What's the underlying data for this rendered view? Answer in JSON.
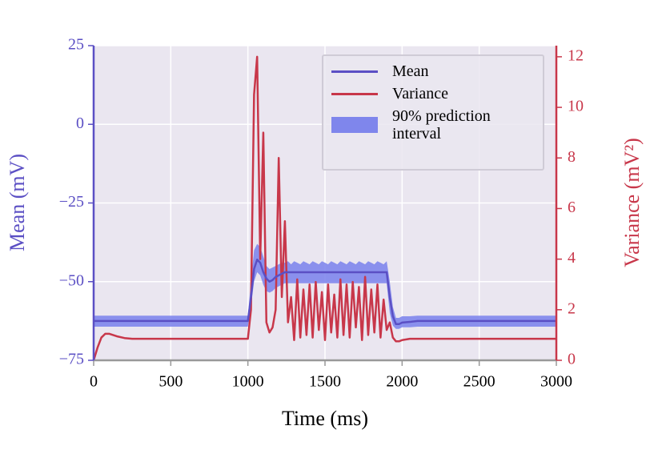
{
  "chart_data": {
    "type": "line",
    "xlabel": "Time (ms)",
    "ylabel": "Mean (mV)",
    "y2label": "Variance (mV²)",
    "x": [
      0,
      25,
      50,
      75,
      100,
      150,
      200,
      250,
      300,
      350,
      400,
      450,
      500,
      550,
      600,
      650,
      700,
      750,
      800,
      850,
      900,
      950,
      1000,
      1020,
      1040,
      1060,
      1080,
      1100,
      1120,
      1140,
      1160,
      1180,
      1200,
      1220,
      1240,
      1260,
      1280,
      1300,
      1320,
      1340,
      1360,
      1380,
      1400,
      1420,
      1440,
      1460,
      1480,
      1500,
      1520,
      1540,
      1560,
      1580,
      1600,
      1620,
      1640,
      1660,
      1680,
      1700,
      1720,
      1740,
      1760,
      1780,
      1800,
      1820,
      1840,
      1860,
      1880,
      1900,
      1920,
      1940,
      1960,
      1980,
      2000,
      2050,
      2100,
      2150,
      2200,
      2250,
      2300,
      2350,
      2400,
      2450,
      2500,
      2550,
      2600,
      2650,
      2700,
      2750,
      2800,
      2850,
      2900,
      2950,
      3000
    ],
    "series": [
      {
        "name": "Mean",
        "color": "#5b4fc4",
        "axis": "y",
        "values": [
          -62.5,
          -62.5,
          -62.5,
          -62.5,
          -62.5,
          -62.5,
          -62.5,
          -62.5,
          -62.5,
          -62.5,
          -62.5,
          -62.5,
          -62.5,
          -62.5,
          -62.5,
          -62.5,
          -62.5,
          -62.5,
          -62.5,
          -62.5,
          -62.5,
          -62.5,
          -62.5,
          -55,
          -46,
          -43,
          -44,
          -47,
          -49,
          -50,
          -49.5,
          -48.5,
          -48,
          -47.5,
          -47,
          -47,
          -47,
          -47,
          -47,
          -47,
          -47,
          -47,
          -47,
          -47,
          -47,
          -47,
          -47,
          -47,
          -47,
          -47,
          -47,
          -47,
          -47,
          -47,
          -47,
          -47,
          -47,
          -47,
          -47,
          -47,
          -47,
          -47,
          -47,
          -47,
          -47,
          -47,
          -47,
          -47,
          -55,
          -61,
          -63.5,
          -63.5,
          -63,
          -62.8,
          -62.5,
          -62.5,
          -62.5,
          -62.5,
          -62.5,
          -62.5,
          -62.5,
          -62.5,
          -62.5,
          -62.5,
          -62.5,
          -62.5,
          -62.5,
          -62.5,
          -62.5,
          -62.5,
          -62.5,
          -62.5,
          -62.5
        ]
      },
      {
        "name": "Variance",
        "color": "#c8374a",
        "axis": "y2",
        "values": [
          0,
          0.5,
          0.9,
          1.05,
          1.05,
          0.95,
          0.88,
          0.85,
          0.85,
          0.85,
          0.85,
          0.85,
          0.85,
          0.85,
          0.85,
          0.85,
          0.85,
          0.85,
          0.85,
          0.85,
          0.85,
          0.85,
          0.85,
          2,
          10.5,
          12,
          4,
          9,
          1.5,
          1.1,
          1.3,
          2,
          8,
          2.5,
          5.5,
          1.5,
          2.5,
          0.8,
          3.2,
          0.9,
          2.8,
          1,
          3,
          0.9,
          3.1,
          1.2,
          2.7,
          0.8,
          3,
          1.1,
          2.6,
          0.9,
          3.2,
          1,
          3,
          0.9,
          3.1,
          1.3,
          2.9,
          0.8,
          3.3,
          1,
          2.8,
          1.1,
          3,
          0.9,
          2.4,
          1.2,
          1.5,
          0.9,
          0.75,
          0.75,
          0.8,
          0.85,
          0.85,
          0.85,
          0.85,
          0.85,
          0.85,
          0.85,
          0.85,
          0.85,
          0.85,
          0.85,
          0.85,
          0.85,
          0.85,
          0.85,
          0.85,
          0.85,
          0.85,
          0.85,
          0.85
        ]
      }
    ],
    "interval": {
      "name": "90% prediction interval",
      "color": "#7f86ec",
      "lower": [
        -64.3,
        -64.3,
        -64.3,
        -64.3,
        -64.3,
        -64.3,
        -64.3,
        -64.3,
        -64.3,
        -64.3,
        -64.3,
        -64.3,
        -64.3,
        -64.3,
        -64.3,
        -64.3,
        -64.3,
        -64.3,
        -64.3,
        -64.3,
        -64.3,
        -64.3,
        -64.3,
        -58,
        -50,
        -47,
        -48,
        -51,
        -53,
        -53.5,
        -53,
        -52,
        -51.5,
        -51,
        -50.5,
        -50.5,
        -50.5,
        -50.5,
        -50.5,
        -50.5,
        -50.5,
        -50.5,
        -50.5,
        -50.5,
        -50.5,
        -50.5,
        -50.5,
        -50.5,
        -50.5,
        -50.5,
        -50.5,
        -50.5,
        -50.5,
        -50.5,
        -50.5,
        -50.5,
        -50.5,
        -50.5,
        -50.5,
        -50.5,
        -50.5,
        -50.5,
        -50.5,
        -50.5,
        -50.5,
        -50.5,
        -50.5,
        -50.5,
        -60,
        -64,
        -65,
        -65,
        -64.5,
        -64.5,
        -64.3,
        -64.3,
        -64.3,
        -64.3,
        -64.3,
        -64.3,
        -64.3,
        -64.3,
        -64.3,
        -64.3,
        -64.3,
        -64.3,
        -64.3,
        -64.3,
        -64.3,
        -64.3,
        -64.3,
        -64.3,
        -64.3
      ],
      "upper": [
        -60.8,
        -60.8,
        -60.8,
        -60.8,
        -60.8,
        -60.8,
        -60.8,
        -60.8,
        -60.8,
        -60.8,
        -60.8,
        -60.8,
        -60.8,
        -60.8,
        -60.8,
        -60.8,
        -60.8,
        -60.8,
        -60.8,
        -60.8,
        -60.8,
        -60.8,
        -60.8,
        -50,
        -40,
        -38,
        -39,
        -42,
        -45,
        -46,
        -45.5,
        -45,
        -44.5,
        -44,
        -44,
        -43.5,
        -44.5,
        -43.5,
        -44,
        -44.5,
        -43.5,
        -44,
        -44.5,
        -43.5,
        -44,
        -44.5,
        -43.5,
        -44,
        -44.5,
        -43.5,
        -44,
        -44.5,
        -43.5,
        -44,
        -44.5,
        -43.5,
        -44,
        -44.5,
        -43.5,
        -44,
        -44.5,
        -43.5,
        -44,
        -44.5,
        -43.5,
        -44,
        -44.5,
        -43.5,
        -50,
        -58,
        -61.5,
        -61.5,
        -61,
        -61,
        -60.8,
        -60.8,
        -60.8,
        -60.8,
        -60.8,
        -60.8,
        -60.8,
        -60.8,
        -60.8,
        -60.8,
        -60.8,
        -60.8,
        -60.8,
        -60.8,
        -60.8,
        -60.8,
        -60.8,
        -60.8,
        -60.8
      ]
    },
    "xlim": [
      0,
      3000
    ],
    "xticks": [
      0,
      500,
      1000,
      1500,
      2000,
      2500,
      3000
    ],
    "ylim": [
      -75,
      25
    ],
    "yticks": [
      {
        "value": -75,
        "label": "−75"
      },
      {
        "value": -50,
        "label": "−50"
      },
      {
        "value": -25,
        "label": "−25"
      },
      0,
      25
    ],
    "y2lim": [
      0,
      12.44
    ],
    "y2ticks": [
      0,
      2,
      4,
      6,
      8,
      10,
      12
    ],
    "grid": true,
    "legend": "upper right"
  }
}
